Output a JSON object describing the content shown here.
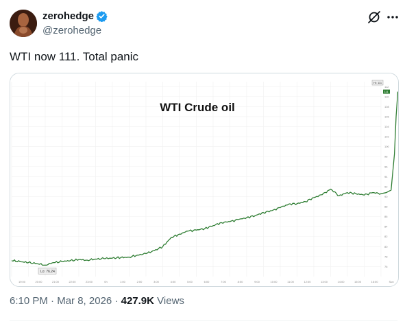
{
  "tweet": {
    "display_name": "zerohedge",
    "handle": "@zerohedge",
    "verified": true,
    "text": "WTI now 111. Total panic",
    "time": "6:10 PM",
    "date": "Mar 8, 2026",
    "views_count": "427.9K",
    "views_label": "Views",
    "separator": "·",
    "icons": {
      "verified": "verified-badge-icon",
      "grok": "grok-icon",
      "more": "more-horizontal-icon"
    }
  },
  "chart_data": {
    "type": "line",
    "title": "WTI Crude oil",
    "x_ticks": [
      "19:00",
      "20:00",
      "21:00",
      "22:00",
      "23:00",
      "0h",
      "1:00",
      "2:00",
      "3:00",
      "4:00",
      "5:00",
      "6:00",
      "7:00",
      "8:00",
      "9:00",
      "10:00",
      "11:00",
      "12:00",
      "13:00",
      "14:00",
      "15:00",
      "16:00",
      "Sun"
    ],
    "y_ticks": [
      76,
      78,
      80,
      82,
      84,
      86,
      88,
      90,
      92,
      94,
      96,
      98,
      100,
      102,
      104,
      106,
      108,
      110,
      112
    ],
    "ylim": [
      74,
      113
    ],
    "low_label": "Lo: 76.24",
    "last_label": "Hi: 111",
    "last_value_label": "111",
    "series": [
      {
        "color": "#2e7d32",
        "x": [
          0,
          0.5,
          1,
          1.5,
          2,
          2.5,
          3,
          3.5,
          4,
          4.5,
          5,
          5.5,
          6,
          6.5,
          7,
          7.5,
          8,
          8.5,
          9,
          9.5,
          10,
          10.5,
          11,
          11.5,
          12,
          12.5,
          13,
          13.5,
          14,
          14.5,
          15,
          15.5,
          16,
          16.5,
          17,
          17.5,
          18,
          18.5,
          19,
          19.5,
          20,
          20.5,
          21,
          21.5,
          22,
          22.3,
          22.6,
          22.8,
          22.9,
          23
        ],
        "values": [
          77.2,
          77.0,
          76.8,
          76.6,
          76.3,
          76.8,
          77.0,
          77.2,
          77.4,
          77.3,
          77.5,
          77.6,
          77.7,
          77.8,
          77.9,
          78.3,
          78.6,
          79.2,
          80.0,
          81.8,
          82.5,
          83.1,
          83.3,
          83.6,
          84.2,
          84.8,
          85.0,
          85.4,
          85.8,
          86.2,
          86.8,
          87.2,
          87.8,
          88.5,
          88.6,
          89.0,
          89.8,
          90.4,
          91.5,
          90.2,
          90.8,
          90.6,
          90.3,
          90.8,
          90.6,
          90.8,
          91.3,
          98.5,
          106.0,
          111.0
        ]
      }
    ]
  }
}
